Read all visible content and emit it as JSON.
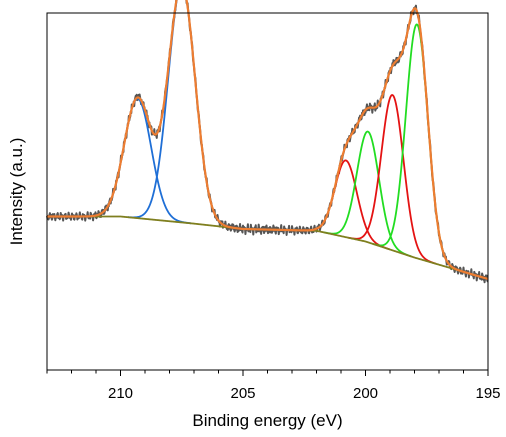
{
  "chart_data": {
    "type": "line",
    "title": "",
    "xlabel": "Binding energy (eV)",
    "ylabel": "Intensity (a.u.)",
    "xlim": [
      213,
      195
    ],
    "ylim": [
      0,
      1
    ],
    "x_reversed": true,
    "x_ticks": [
      210,
      205,
      200,
      195
    ],
    "grid": false,
    "legend": "none",
    "y_tick_labels": false,
    "colors": {
      "raw": "#555555",
      "fit": "#ED7D31",
      "background": "#7F7F1F",
      "blue": "#1F6FD6",
      "green": "#22DD22",
      "red": "#E41313"
    },
    "background_points": [
      [
        213.0,
        0.43
      ],
      [
        210.0,
        0.43
      ],
      [
        207.0,
        0.41
      ],
      [
        205.0,
        0.395
      ],
      [
        202.0,
        0.39
      ],
      [
        200.0,
        0.36
      ],
      [
        198.0,
        0.315
      ],
      [
        196.5,
        0.285
      ],
      [
        195.0,
        0.255
      ]
    ],
    "components": [
      {
        "group": "blue",
        "center": 209.3,
        "height": 0.335,
        "sigma": 0.55
      },
      {
        "group": "blue",
        "center": 207.5,
        "height": 0.665,
        "sigma": 0.55
      },
      {
        "group": "red",
        "center": 200.8,
        "height": 0.215,
        "sigma": 0.45
      },
      {
        "group": "green",
        "center": 199.9,
        "height": 0.31,
        "sigma": 0.45
      },
      {
        "group": "red",
        "center": 198.9,
        "height": 0.435,
        "sigma": 0.45
      },
      {
        "group": "green",
        "center": 197.9,
        "height": 0.655,
        "sigma": 0.45
      }
    ]
  }
}
